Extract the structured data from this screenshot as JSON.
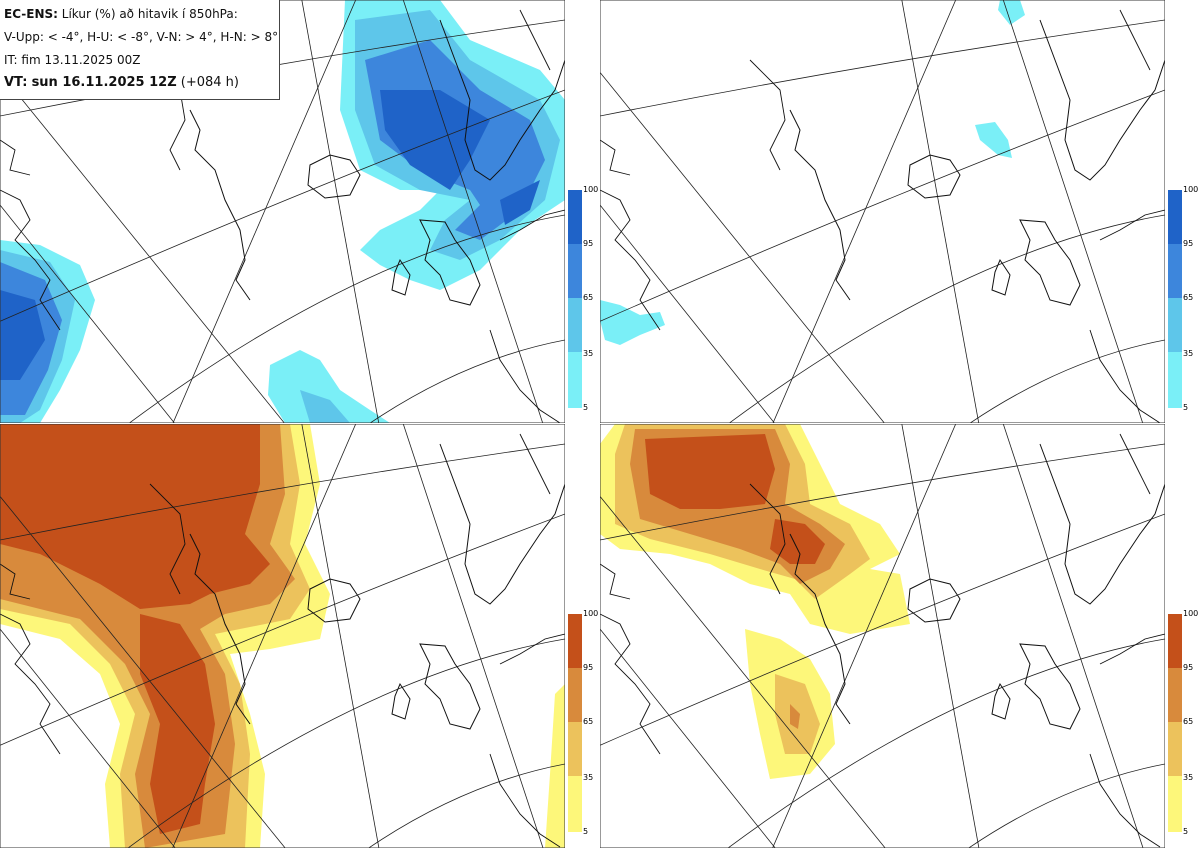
{
  "info_box": {
    "model": "EC-ENS:",
    "title": "Líkur (%) að hitavik í 850hPa:",
    "thresholds": "V-Upp: < -4°, H-U: < -8°, V-N: > 4°, H-N: > 8°",
    "it_label": "IT:",
    "it_value": "fim 13.11.2025 00Z",
    "vt_label": "VT:",
    "vt_value": "sun 16.11.2025 12Z",
    "lead": "(+084 h)"
  },
  "panels": [
    {
      "id": "V-Upp",
      "quadrant": "top-left",
      "palette": "cold",
      "threshold": "< -4°"
    },
    {
      "id": "H-U",
      "quadrant": "top-right",
      "palette": "cold",
      "threshold": "< -8°"
    },
    {
      "id": "V-N",
      "quadrant": "bottom-left",
      "palette": "warm",
      "threshold": "> 4°"
    },
    {
      "id": "H-N",
      "quadrant": "bottom-right",
      "palette": "warm",
      "threshold": "> 8°"
    }
  ],
  "colorbar": {
    "ticks": [
      "100",
      "95",
      "65",
      "35",
      "5"
    ],
    "cold_colors": [
      "#1f63c8",
      "#3d86dc",
      "#5ec6ea",
      "#7aeff7"
    ],
    "warm_colors": [
      "#c4501a",
      "#d88a3c",
      "#ecc25c",
      "#fdf77a"
    ]
  }
}
